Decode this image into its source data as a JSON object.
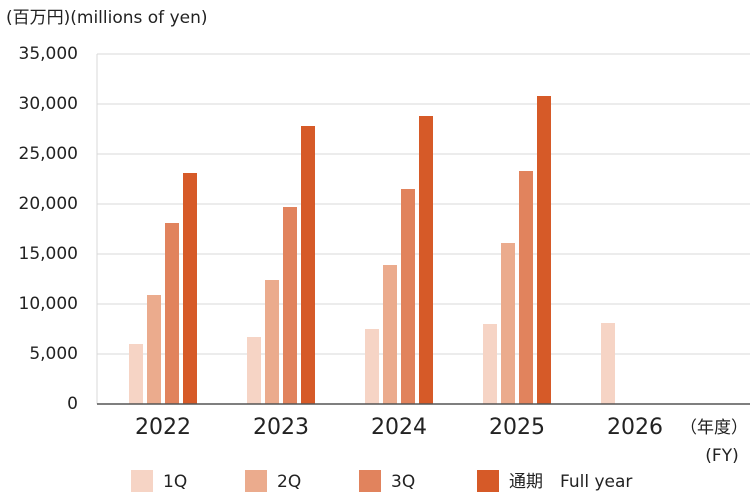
{
  "chart_data": {
    "type": "bar",
    "y_label": "(百万円)(millions of yen)",
    "x_label": "（年度）",
    "x_label_en": "(FY)",
    "categories": [
      "2022",
      "2023",
      "2024",
      "2025",
      "2026"
    ],
    "series": [
      {
        "name": "1Q",
        "color": "#f6d4c5",
        "values": [
          6000,
          6700,
          7500,
          8000,
          8100
        ]
      },
      {
        "name": "2Q",
        "color": "#ebab8d",
        "values": [
          10900,
          12400,
          13900,
          16100,
          null
        ]
      },
      {
        "name": "3Q",
        "color": "#e1835d",
        "values": [
          18100,
          19700,
          21500,
          23300,
          null
        ]
      },
      {
        "name": "通期　Full year",
        "color": "#d65a28",
        "values": [
          23100,
          27800,
          28800,
          30800,
          null
        ]
      }
    ],
    "ylim": [
      0,
      35000
    ],
    "yticks": [
      0,
      {
        "value": 5000,
        "label": "5,000"
      },
      {
        "value": 10000,
        "label": "10,000"
      },
      {
        "value": 15000,
        "label": "15,000"
      },
      {
        "value": 20000,
        "label": "20,000"
      },
      {
        "value": 25000,
        "label": "25,000"
      },
      {
        "value": 30000,
        "label": "30,000"
      },
      {
        "value": 35000,
        "label": "35,000"
      }
    ],
    "grid": true
  }
}
